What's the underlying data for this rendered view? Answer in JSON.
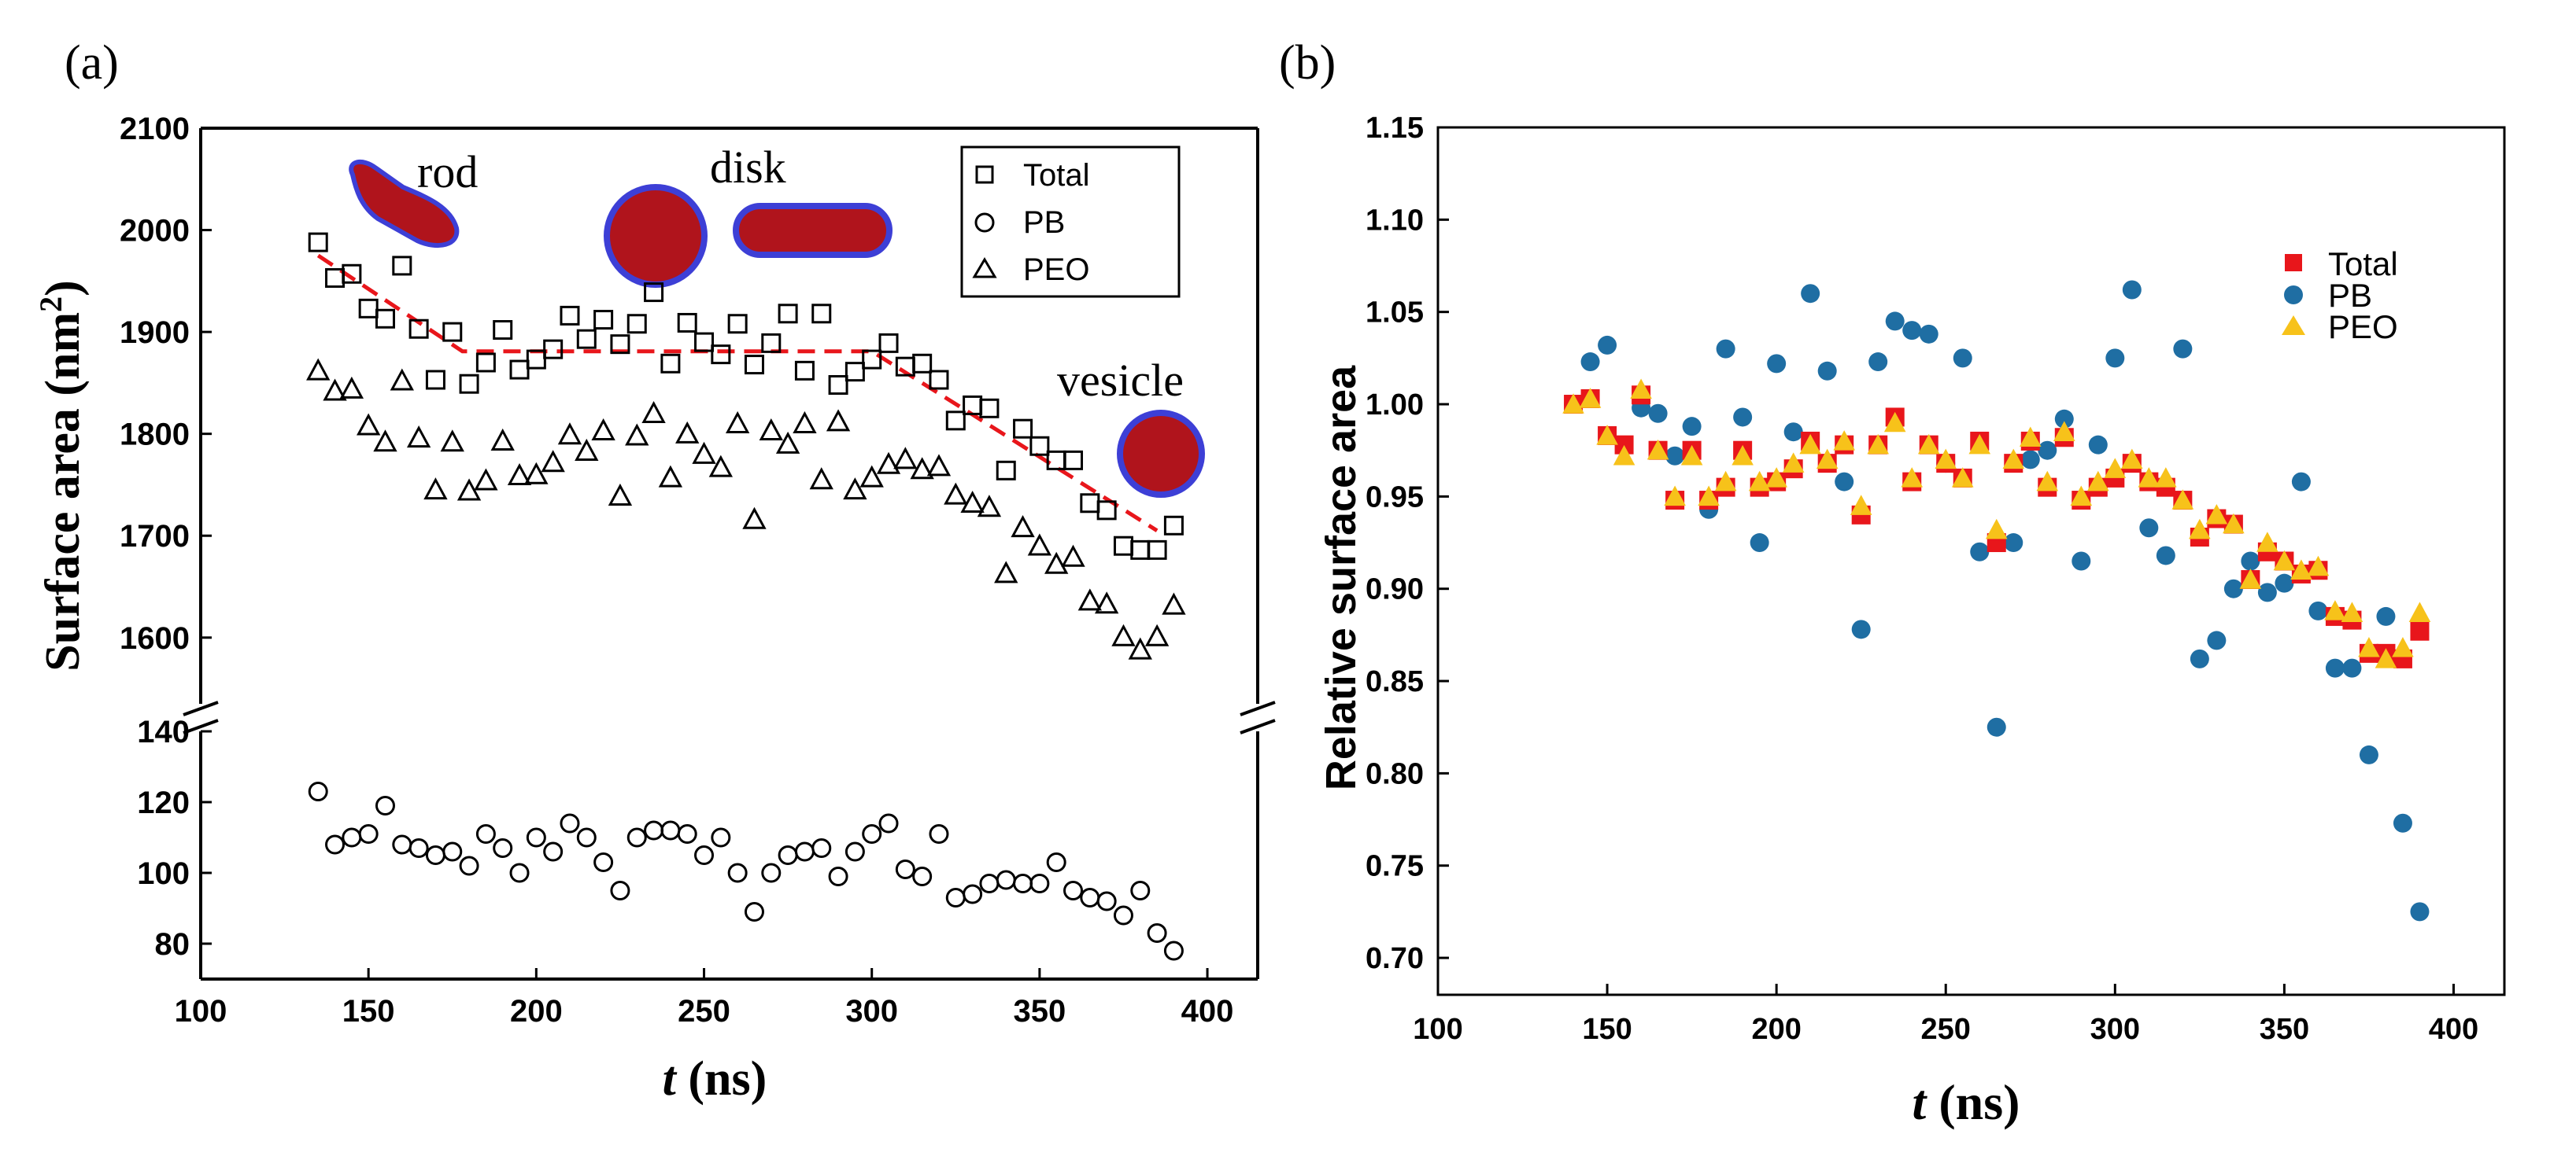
{
  "panels": [
    {
      "id": "a",
      "label": "(a)",
      "xlabel_italic": "t",
      "xlabel_rest": " (ns)",
      "ylabel_main": "Surface area (nm",
      "ylabel_sup": "2",
      "ylabel_close": ")",
      "x_ticks": [
        "100",
        "150",
        "200",
        "250",
        "300",
        "350",
        "400"
      ],
      "y_ticks_upper": [
        "1600",
        "1700",
        "1800",
        "1900",
        "2000",
        "2100"
      ],
      "y_ticks_lower": [
        "80",
        "100",
        "120",
        "140"
      ],
      "legend": [
        {
          "label": "Total",
          "marker": "square-open"
        },
        {
          "label": "PB",
          "marker": "circle-open"
        },
        {
          "label": "PEO",
          "marker": "triangle-open"
        }
      ],
      "annotations": [
        {
          "text": "rod",
          "shape": "rod-icon"
        },
        {
          "text": "disk",
          "shape": "disk-icon"
        },
        {
          "text": "vesicle",
          "shape": "vesicle-icon"
        }
      ]
    },
    {
      "id": "b",
      "label": "(b)",
      "xlabel_italic": "t",
      "xlabel_rest": " (ns)",
      "ylabel": "Relative surface area",
      "x_ticks": [
        "100",
        "150",
        "200",
        "250",
        "300",
        "350",
        "400"
      ],
      "y_ticks": [
        "0.70",
        "0.75",
        "0.80",
        "0.85",
        "0.90",
        "0.95",
        "1.00",
        "1.05",
        "1.10",
        "1.15"
      ],
      "legend": [
        {
          "label": "Total",
          "marker": "square",
          "color": "#e8161b"
        },
        {
          "label": "PB",
          "marker": "circle",
          "color": "#1f6ea3"
        },
        {
          "label": "PEO",
          "marker": "triangle",
          "color": "#f7c21a"
        }
      ]
    }
  ],
  "chart_data": [
    {
      "panel": "a",
      "type": "scatter",
      "xlabel": "t (ns)",
      "ylabel": "Surface area (nm2)",
      "xlim": [
        100,
        415
      ],
      "ylim_upper": [
        1535,
        2100
      ],
      "ylim_lower": [
        70,
        140
      ],
      "axis_break": true,
      "x": [
        135,
        140,
        145,
        150,
        155,
        160,
        165,
        170,
        175,
        180,
        185,
        190,
        195,
        200,
        205,
        210,
        215,
        220,
        225,
        230,
        235,
        240,
        245,
        250,
        255,
        260,
        265,
        270,
        275,
        280,
        285,
        290,
        295,
        300,
        305,
        310,
        315,
        320,
        325,
        330,
        335,
        340,
        345,
        350,
        355,
        360,
        365,
        370,
        375,
        380,
        385,
        390
      ],
      "series": [
        {
          "name": "Total",
          "marker": "square-open",
          "color": "#000000",
          "values": [
            1988,
            1953,
            1957,
            1923,
            1913,
            1965,
            1903,
            1853,
            1900,
            1849,
            1870,
            1902,
            1863,
            1873,
            1883,
            1916,
            1893,
            1912,
            1888,
            1908,
            1939,
            1869,
            1909,
            1890,
            1878,
            1908,
            1868,
            1889,
            1918,
            1862,
            1918,
            1848,
            1861,
            1873,
            1889,
            1866,
            1869,
            1853,
            1813,
            1828,
            1825,
            1764,
            1805,
            1788,
            1774,
            1774,
            1732,
            1725,
            1690,
            1686,
            1686,
            1710
          ]
        },
        {
          "name": "PB",
          "marker": "circle-open",
          "color": "#000000",
          "values": [
            123,
            108,
            110,
            111,
            119,
            108,
            107,
            105,
            106,
            102,
            111,
            107,
            100,
            110,
            106,
            114,
            110,
            103,
            95,
            110,
            112,
            112,
            111,
            105,
            110,
            100,
            89,
            100,
            105,
            106,
            107,
            99,
            106,
            111,
            114,
            101,
            99,
            111,
            93,
            94,
            97,
            98,
            97,
            97,
            103,
            95,
            93,
            92,
            88,
            95,
            83,
            78
          ]
        },
        {
          "name": "PEO",
          "marker": "triangle-open",
          "color": "#000000",
          "values": [
            1862,
            1842,
            1844,
            1808,
            1792,
            1852,
            1796,
            1745,
            1792,
            1744,
            1754,
            1793,
            1759,
            1760,
            1772,
            1799,
            1783,
            1803,
            1739,
            1798,
            1820,
            1757,
            1800,
            1780,
            1767,
            1810,
            1716,
            1803,
            1790,
            1810,
            1755,
            1812,
            1745,
            1757,
            1770,
            1775,
            1765,
            1768,
            1740,
            1732,
            1728,
            1663,
            1708,
            1690,
            1672,
            1679,
            1636,
            1633,
            1601,
            1588,
            1601,
            1632
          ]
        }
      ],
      "guide_line": {
        "style": "dashed",
        "color": "#e8161b",
        "x": [
          135,
          178,
          300,
          385
        ],
        "values": [
          1975,
          1881,
          1881,
          1705
        ]
      }
    },
    {
      "panel": "b",
      "type": "scatter",
      "xlabel": "t (ns)",
      "ylabel": "Relative surface area",
      "xlim": [
        100,
        415
      ],
      "ylim": [
        0.68,
        1.15
      ],
      "x": [
        140,
        145,
        150,
        155,
        160,
        165,
        170,
        175,
        180,
        185,
        190,
        195,
        200,
        205,
        210,
        215,
        220,
        225,
        230,
        235,
        240,
        245,
        250,
        255,
        260,
        265,
        270,
        275,
        280,
        285,
        290,
        295,
        300,
        305,
        310,
        315,
        320,
        325,
        330,
        335,
        340,
        345,
        350,
        355,
        360,
        365,
        370,
        375,
        380,
        385,
        390
      ],
      "series": [
        {
          "name": "Total",
          "marker": "square",
          "color": "#e8161b",
          "values": [
            1.0,
            1.003,
            0.983,
            0.978,
            1.005,
            0.975,
            0.948,
            0.975,
            0.948,
            0.955,
            0.975,
            0.955,
            0.958,
            0.965,
            0.98,
            0.968,
            0.978,
            0.94,
            0.978,
            0.993,
            0.958,
            0.978,
            0.968,
            0.96,
            0.98,
            0.925,
            0.968,
            0.98,
            0.955,
            0.982,
            0.948,
            0.955,
            0.96,
            0.968,
            0.958,
            0.955,
            0.948,
            0.928,
            0.938,
            0.935,
            0.905,
            0.92,
            0.915,
            0.908,
            0.91,
            0.885,
            0.883,
            0.865,
            0.865,
            0.862,
            0.877
          ]
        },
        {
          "name": "PB",
          "marker": "circle",
          "color": "#1f6ea3",
          "values": [
            1.0,
            1.023,
            1.032,
            null,
            0.998,
            0.995,
            0.972,
            0.988,
            0.943,
            1.03,
            0.993,
            0.925,
            1.022,
            0.985,
            1.06,
            1.018,
            0.958,
            0.878,
            1.023,
            1.045,
            1.04,
            1.038,
            0.968,
            1.025,
            0.92,
            0.825,
            0.925,
            0.97,
            0.975,
            0.992,
            0.915,
            0.978,
            1.025,
            1.062,
            0.933,
            0.918,
            1.03,
            0.862,
            0.872,
            0.9,
            0.915,
            0.898,
            0.903,
            0.958,
            0.888,
            0.857,
            0.857,
            0.81,
            0.885,
            0.773,
            0.725
          ]
        },
        {
          "name": "PEO",
          "marker": "triangle",
          "color": "#f7c21a",
          "values": [
            1.0,
            1.003,
            0.983,
            0.972,
            1.008,
            0.975,
            0.95,
            0.972,
            0.95,
            0.958,
            0.972,
            0.958,
            0.96,
            0.968,
            0.978,
            0.97,
            0.98,
            0.945,
            0.978,
            0.99,
            0.96,
            0.978,
            0.97,
            0.96,
            0.978,
            0.932,
            0.97,
            0.982,
            0.958,
            0.985,
            0.95,
            0.958,
            0.965,
            0.97,
            0.96,
            0.96,
            0.948,
            0.932,
            0.94,
            0.935,
            0.905,
            0.925,
            0.915,
            0.91,
            0.912,
            0.888,
            0.887,
            0.868,
            0.862,
            0.868,
            0.887
          ]
        }
      ]
    }
  ]
}
